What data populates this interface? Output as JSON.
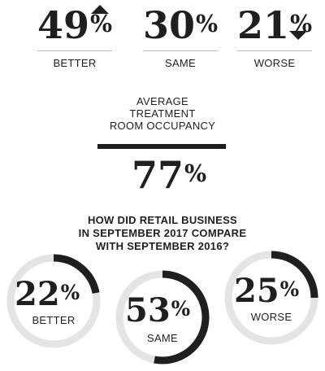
{
  "top_stats": [
    {
      "value": "49",
      "pct": "%",
      "label": "BETTER"
    },
    {
      "value": "30",
      "pct": "%",
      "label": "SAME"
    },
    {
      "value": "21",
      "pct": "%",
      "label": "WORSE"
    }
  ],
  "occupancy": {
    "title_lines": [
      "AVERAGE",
      "TREATMENT",
      "ROOM OCCUPANCY"
    ],
    "value": "77",
    "pct": "%"
  },
  "retail": {
    "question_lines": [
      "HOW DID RETAIL BUSINESS",
      "IN SEPTEMBER 2017 COMPARE",
      "WITH SEPTEMBER 2016?"
    ],
    "rings": [
      {
        "value": "22",
        "pct": "%",
        "label": "BETTER"
      },
      {
        "value": "53",
        "pct": "%",
        "label": "SAME"
      },
      {
        "value": "25",
        "pct": "%",
        "label": "WORSE"
      }
    ]
  },
  "colors": {
    "ink": "#1f1f1f",
    "track": "#e4e4e4",
    "rule": "#bdbdbd"
  },
  "chart_data": [
    {
      "type": "bar",
      "categories": [
        "BETTER",
        "SAME",
        "WORSE"
      ],
      "values": [
        49,
        30,
        21
      ],
      "title": ""
    },
    {
      "type": "table",
      "title": "AVERAGE TREATMENT ROOM OCCUPANCY",
      "values": [
        77
      ]
    },
    {
      "type": "pie",
      "title": "HOW DID RETAIL BUSINESS IN SEPTEMBER 2017 COMPARE WITH SEPTEMBER 2016?",
      "categories": [
        "BETTER",
        "SAME",
        "WORSE"
      ],
      "values": [
        22,
        53,
        25
      ]
    }
  ]
}
